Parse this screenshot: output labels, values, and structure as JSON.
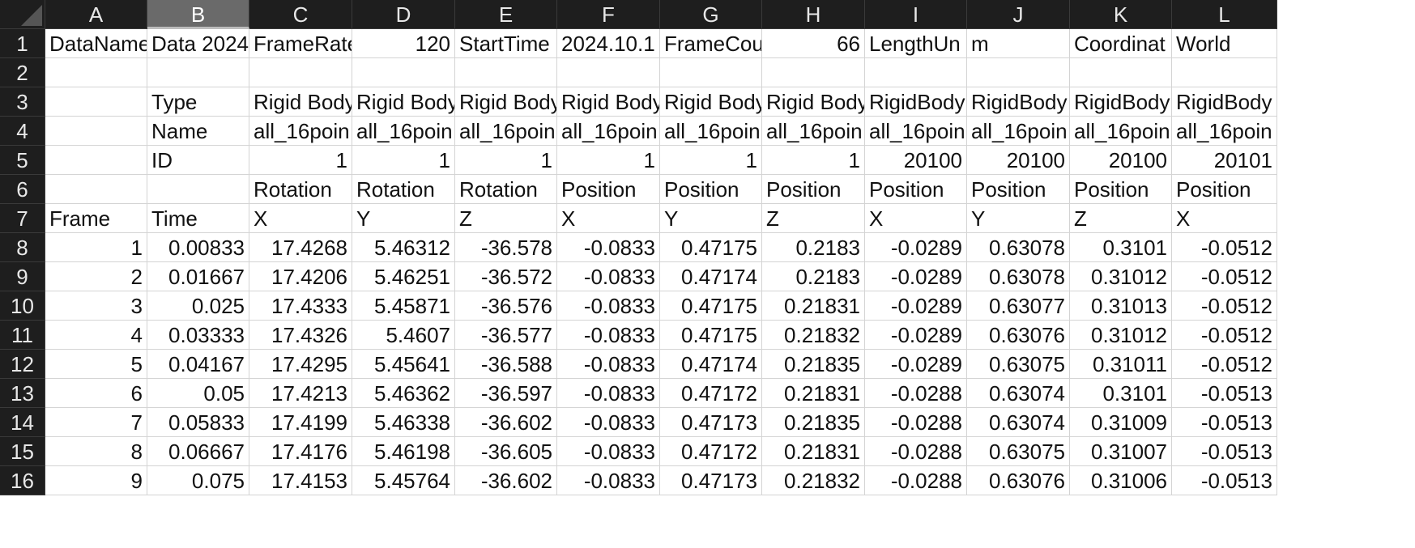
{
  "columns": [
    "A",
    "B",
    "C",
    "D",
    "E",
    "F",
    "G",
    "H",
    "I",
    "J",
    "K",
    "L"
  ],
  "selected_column": "B",
  "rows": [
    {
      "n": "1",
      "cells": [
        {
          "v": "DataName",
          "a": "l"
        },
        {
          "v": "Data 2024",
          "a": "l"
        },
        {
          "v": "FrameRate",
          "a": "l"
        },
        {
          "v": "120",
          "a": "r"
        },
        {
          "v": "StartTime",
          "a": "l"
        },
        {
          "v": "2024.10.1",
          "a": "l"
        },
        {
          "v": "FrameCou",
          "a": "l"
        },
        {
          "v": "66",
          "a": "r"
        },
        {
          "v": "LengthUn",
          "a": "l"
        },
        {
          "v": "m",
          "a": "l"
        },
        {
          "v": "Coordinat",
          "a": "l"
        },
        {
          "v": "World",
          "a": "l"
        }
      ]
    },
    {
      "n": "2",
      "cells": [
        {
          "v": "",
          "a": "l"
        },
        {
          "v": "",
          "a": "l"
        },
        {
          "v": "",
          "a": "l"
        },
        {
          "v": "",
          "a": "l"
        },
        {
          "v": "",
          "a": "l"
        },
        {
          "v": "",
          "a": "l"
        },
        {
          "v": "",
          "a": "l"
        },
        {
          "v": "",
          "a": "l"
        },
        {
          "v": "",
          "a": "l"
        },
        {
          "v": "",
          "a": "l"
        },
        {
          "v": "",
          "a": "l"
        },
        {
          "v": "",
          "a": "l"
        }
      ]
    },
    {
      "n": "3",
      "cells": [
        {
          "v": "",
          "a": "l"
        },
        {
          "v": "Type",
          "a": "l"
        },
        {
          "v": "Rigid Body",
          "a": "l"
        },
        {
          "v": "Rigid Body",
          "a": "l"
        },
        {
          "v": "Rigid Body",
          "a": "l"
        },
        {
          "v": "Rigid Body",
          "a": "l"
        },
        {
          "v": "Rigid Body",
          "a": "l"
        },
        {
          "v": "Rigid Body",
          "a": "l"
        },
        {
          "v": "RigidBody",
          "a": "l"
        },
        {
          "v": "RigidBody",
          "a": "l"
        },
        {
          "v": "RigidBody",
          "a": "l"
        },
        {
          "v": "RigidBody",
          "a": "l"
        }
      ]
    },
    {
      "n": "4",
      "cells": [
        {
          "v": "",
          "a": "l"
        },
        {
          "v": "Name",
          "a": "l"
        },
        {
          "v": "all_16poin",
          "a": "l"
        },
        {
          "v": "all_16poin",
          "a": "l"
        },
        {
          "v": "all_16poin",
          "a": "l"
        },
        {
          "v": "all_16poin",
          "a": "l"
        },
        {
          "v": "all_16poin",
          "a": "l"
        },
        {
          "v": "all_16poin",
          "a": "l"
        },
        {
          "v": "all_16poin",
          "a": "l"
        },
        {
          "v": "all_16poin",
          "a": "l"
        },
        {
          "v": "all_16poin",
          "a": "l"
        },
        {
          "v": "all_16poin",
          "a": "l"
        }
      ]
    },
    {
      "n": "5",
      "cells": [
        {
          "v": "",
          "a": "l"
        },
        {
          "v": "ID",
          "a": "l"
        },
        {
          "v": "1",
          "a": "r"
        },
        {
          "v": "1",
          "a": "r"
        },
        {
          "v": "1",
          "a": "r"
        },
        {
          "v": "1",
          "a": "r"
        },
        {
          "v": "1",
          "a": "r"
        },
        {
          "v": "1",
          "a": "r"
        },
        {
          "v": "20100",
          "a": "r"
        },
        {
          "v": "20100",
          "a": "r"
        },
        {
          "v": "20100",
          "a": "r"
        },
        {
          "v": "20101",
          "a": "r"
        }
      ]
    },
    {
      "n": "6",
      "cells": [
        {
          "v": "",
          "a": "l"
        },
        {
          "v": "",
          "a": "l"
        },
        {
          "v": "Rotation",
          "a": "l"
        },
        {
          "v": "Rotation",
          "a": "l"
        },
        {
          "v": "Rotation",
          "a": "l"
        },
        {
          "v": "Position",
          "a": "l"
        },
        {
          "v": "Position",
          "a": "l"
        },
        {
          "v": "Position",
          "a": "l"
        },
        {
          "v": "Position",
          "a": "l"
        },
        {
          "v": "Position",
          "a": "l"
        },
        {
          "v": "Position",
          "a": "l"
        },
        {
          "v": "Position",
          "a": "l"
        }
      ]
    },
    {
      "n": "7",
      "cells": [
        {
          "v": "Frame",
          "a": "l"
        },
        {
          "v": "Time",
          "a": "l"
        },
        {
          "v": "X",
          "a": "l"
        },
        {
          "v": "Y",
          "a": "l"
        },
        {
          "v": "Z",
          "a": "l"
        },
        {
          "v": "X",
          "a": "l"
        },
        {
          "v": "Y",
          "a": "l"
        },
        {
          "v": "Z",
          "a": "l"
        },
        {
          "v": "X",
          "a": "l"
        },
        {
          "v": "Y",
          "a": "l"
        },
        {
          "v": "Z",
          "a": "l"
        },
        {
          "v": "X",
          "a": "l"
        }
      ]
    },
    {
      "n": "8",
      "cells": [
        {
          "v": "1",
          "a": "r"
        },
        {
          "v": "0.00833",
          "a": "r"
        },
        {
          "v": "17.4268",
          "a": "r"
        },
        {
          "v": "5.46312",
          "a": "r"
        },
        {
          "v": "-36.578",
          "a": "r"
        },
        {
          "v": "-0.0833",
          "a": "r"
        },
        {
          "v": "0.47175",
          "a": "r"
        },
        {
          "v": "0.2183",
          "a": "r"
        },
        {
          "v": "-0.0289",
          "a": "r"
        },
        {
          "v": "0.63078",
          "a": "r"
        },
        {
          "v": "0.3101",
          "a": "r"
        },
        {
          "v": "-0.0512",
          "a": "r"
        }
      ]
    },
    {
      "n": "9",
      "cells": [
        {
          "v": "2",
          "a": "r"
        },
        {
          "v": "0.01667",
          "a": "r"
        },
        {
          "v": "17.4206",
          "a": "r"
        },
        {
          "v": "5.46251",
          "a": "r"
        },
        {
          "v": "-36.572",
          "a": "r"
        },
        {
          "v": "-0.0833",
          "a": "r"
        },
        {
          "v": "0.47174",
          "a": "r"
        },
        {
          "v": "0.2183",
          "a": "r"
        },
        {
          "v": "-0.0289",
          "a": "r"
        },
        {
          "v": "0.63078",
          "a": "r"
        },
        {
          "v": "0.31012",
          "a": "r"
        },
        {
          "v": "-0.0512",
          "a": "r"
        }
      ]
    },
    {
      "n": "10",
      "cells": [
        {
          "v": "3",
          "a": "r"
        },
        {
          "v": "0.025",
          "a": "r"
        },
        {
          "v": "17.4333",
          "a": "r"
        },
        {
          "v": "5.45871",
          "a": "r"
        },
        {
          "v": "-36.576",
          "a": "r"
        },
        {
          "v": "-0.0833",
          "a": "r"
        },
        {
          "v": "0.47175",
          "a": "r"
        },
        {
          "v": "0.21831",
          "a": "r"
        },
        {
          "v": "-0.0289",
          "a": "r"
        },
        {
          "v": "0.63077",
          "a": "r"
        },
        {
          "v": "0.31013",
          "a": "r"
        },
        {
          "v": "-0.0512",
          "a": "r"
        }
      ]
    },
    {
      "n": "11",
      "cells": [
        {
          "v": "4",
          "a": "r"
        },
        {
          "v": "0.03333",
          "a": "r"
        },
        {
          "v": "17.4326",
          "a": "r"
        },
        {
          "v": "5.4607",
          "a": "r"
        },
        {
          "v": "-36.577",
          "a": "r"
        },
        {
          "v": "-0.0833",
          "a": "r"
        },
        {
          "v": "0.47175",
          "a": "r"
        },
        {
          "v": "0.21832",
          "a": "r"
        },
        {
          "v": "-0.0289",
          "a": "r"
        },
        {
          "v": "0.63076",
          "a": "r"
        },
        {
          "v": "0.31012",
          "a": "r"
        },
        {
          "v": "-0.0512",
          "a": "r"
        }
      ]
    },
    {
      "n": "12",
      "cells": [
        {
          "v": "5",
          "a": "r"
        },
        {
          "v": "0.04167",
          "a": "r"
        },
        {
          "v": "17.4295",
          "a": "r"
        },
        {
          "v": "5.45641",
          "a": "r"
        },
        {
          "v": "-36.588",
          "a": "r"
        },
        {
          "v": "-0.0833",
          "a": "r"
        },
        {
          "v": "0.47174",
          "a": "r"
        },
        {
          "v": "0.21835",
          "a": "r"
        },
        {
          "v": "-0.0289",
          "a": "r"
        },
        {
          "v": "0.63075",
          "a": "r"
        },
        {
          "v": "0.31011",
          "a": "r"
        },
        {
          "v": "-0.0512",
          "a": "r"
        }
      ]
    },
    {
      "n": "13",
      "cells": [
        {
          "v": "6",
          "a": "r"
        },
        {
          "v": "0.05",
          "a": "r"
        },
        {
          "v": "17.4213",
          "a": "r"
        },
        {
          "v": "5.46362",
          "a": "r"
        },
        {
          "v": "-36.597",
          "a": "r"
        },
        {
          "v": "-0.0833",
          "a": "r"
        },
        {
          "v": "0.47172",
          "a": "r"
        },
        {
          "v": "0.21831",
          "a": "r"
        },
        {
          "v": "-0.0288",
          "a": "r"
        },
        {
          "v": "0.63074",
          "a": "r"
        },
        {
          "v": "0.3101",
          "a": "r"
        },
        {
          "v": "-0.0513",
          "a": "r"
        }
      ]
    },
    {
      "n": "14",
      "cells": [
        {
          "v": "7",
          "a": "r"
        },
        {
          "v": "0.05833",
          "a": "r"
        },
        {
          "v": "17.4199",
          "a": "r"
        },
        {
          "v": "5.46338",
          "a": "r"
        },
        {
          "v": "-36.602",
          "a": "r"
        },
        {
          "v": "-0.0833",
          "a": "r"
        },
        {
          "v": "0.47173",
          "a": "r"
        },
        {
          "v": "0.21835",
          "a": "r"
        },
        {
          "v": "-0.0288",
          "a": "r"
        },
        {
          "v": "0.63074",
          "a": "r"
        },
        {
          "v": "0.31009",
          "a": "r"
        },
        {
          "v": "-0.0513",
          "a": "r"
        }
      ]
    },
    {
      "n": "15",
      "cells": [
        {
          "v": "8",
          "a": "r"
        },
        {
          "v": "0.06667",
          "a": "r"
        },
        {
          "v": "17.4176",
          "a": "r"
        },
        {
          "v": "5.46198",
          "a": "r"
        },
        {
          "v": "-36.605",
          "a": "r"
        },
        {
          "v": "-0.0833",
          "a": "r"
        },
        {
          "v": "0.47172",
          "a": "r"
        },
        {
          "v": "0.21831",
          "a": "r"
        },
        {
          "v": "-0.0288",
          "a": "r"
        },
        {
          "v": "0.63075",
          "a": "r"
        },
        {
          "v": "0.31007",
          "a": "r"
        },
        {
          "v": "-0.0513",
          "a": "r"
        }
      ]
    },
    {
      "n": "16",
      "cells": [
        {
          "v": "9",
          "a": "r"
        },
        {
          "v": "0.075",
          "a": "r"
        },
        {
          "v": "17.4153",
          "a": "r"
        },
        {
          "v": "5.45764",
          "a": "r"
        },
        {
          "v": "-36.602",
          "a": "r"
        },
        {
          "v": "-0.0833",
          "a": "r"
        },
        {
          "v": "0.47173",
          "a": "r"
        },
        {
          "v": "0.21832",
          "a": "r"
        },
        {
          "v": "-0.0288",
          "a": "r"
        },
        {
          "v": "0.63076",
          "a": "r"
        },
        {
          "v": "0.31006",
          "a": "r"
        },
        {
          "v": "-0.0513",
          "a": "r"
        }
      ]
    }
  ]
}
